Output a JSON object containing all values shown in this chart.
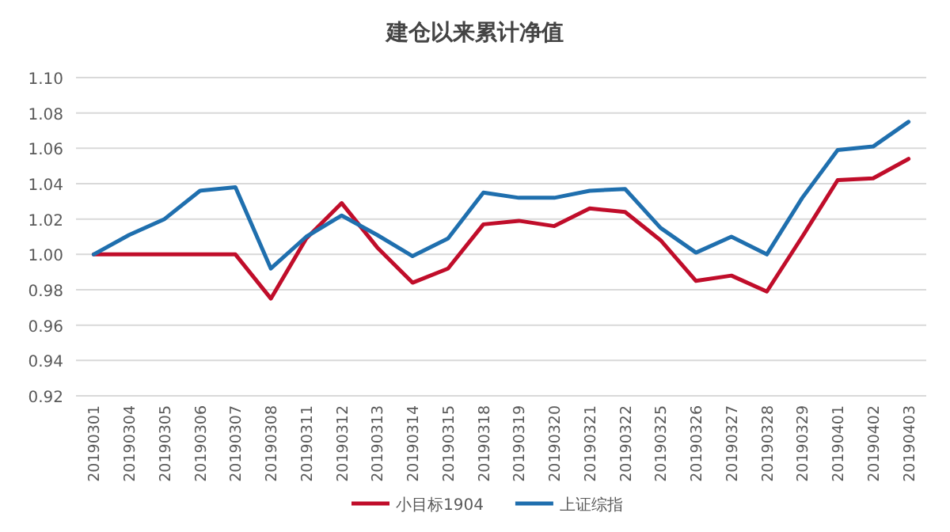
{
  "chart_data": {
    "type": "line",
    "title": "建仓以来累计净值",
    "categories": [
      "20190301",
      "20190304",
      "20190305",
      "20190306",
      "20190307",
      "20190308",
      "20190311",
      "20190312",
      "20190313",
      "20190314",
      "20190315",
      "20190318",
      "20190319",
      "20190320",
      "20190321",
      "20190322",
      "20190325",
      "20190326",
      "20190327",
      "20190328",
      "20190329",
      "20190401",
      "20190402",
      "20190403"
    ],
    "series": [
      {
        "name": "小目标1904",
        "color": "#c00d2a",
        "values": [
          1.0,
          1.0,
          1.0,
          1.0,
          1.0,
          0.975,
          1.009,
          1.029,
          1.004,
          0.984,
          0.992,
          1.017,
          1.019,
          1.016,
          1.026,
          1.024,
          1.008,
          0.985,
          0.988,
          0.979,
          1.01,
          1.042,
          1.043,
          1.054
        ]
      },
      {
        "name": "上证综指",
        "color": "#1f6fae",
        "values": [
          1.0,
          1.011,
          1.02,
          1.036,
          1.038,
          0.992,
          1.01,
          1.022,
          1.011,
          0.999,
          1.009,
          1.035,
          1.032,
          1.032,
          1.036,
          1.037,
          1.015,
          1.001,
          1.01,
          1.0,
          1.032,
          1.059,
          1.061,
          1.075
        ]
      }
    ],
    "ylim": [
      0.92,
      1.1
    ],
    "yticks": [
      {
        "value": 0.92,
        "label": "0.92"
      },
      {
        "value": 0.94,
        "label": "0.94"
      },
      {
        "value": 0.96,
        "label": "0.96"
      },
      {
        "value": 0.98,
        "label": "0.98"
      },
      {
        "value": 1.0,
        "label": "1.00"
      },
      {
        "value": 1.02,
        "label": "1.02"
      },
      {
        "value": 1.04,
        "label": "1.04"
      },
      {
        "value": 1.06,
        "label": "1.06"
      },
      {
        "value": 1.08,
        "label": "1.08"
      },
      {
        "value": 1.1,
        "label": "1.10"
      }
    ],
    "grid": "y",
    "legend": "bottom",
    "marker": "none",
    "line_style": "solid"
  }
}
